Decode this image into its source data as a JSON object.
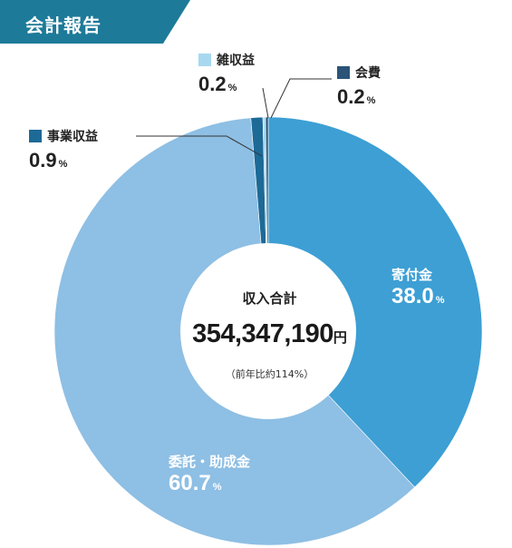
{
  "header": {
    "title": "会計報告",
    "color": "#1d7a99"
  },
  "chart_data": {
    "type": "pie",
    "donut": true,
    "center_label": "収入合計",
    "total_value": "354,347,190",
    "total_unit": "円",
    "comparison": "（前年比約114%）",
    "percent_unit": "%",
    "slices": [
      {
        "name": "寄付金",
        "value": 38.0,
        "label": "38.0",
        "color": "#3d9fd4"
      },
      {
        "name": "委託・助成金",
        "value": 60.7,
        "label": "60.7",
        "color": "#8ebfe4"
      },
      {
        "name": "事業収益",
        "value": 0.9,
        "label": "0.9",
        "color": "#1d6a97"
      },
      {
        "name": "雑収益",
        "value": 0.2,
        "label": "0.2",
        "color": "#a8d8f0"
      },
      {
        "name": "会費",
        "value": 0.2,
        "label": "0.2",
        "color": "#2b5478"
      }
    ]
  }
}
